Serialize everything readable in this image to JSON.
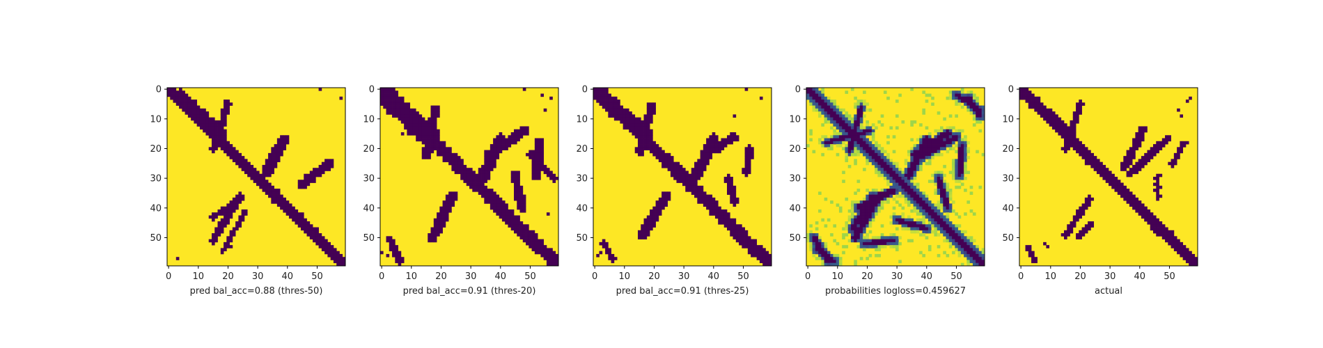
{
  "colors": {
    "dark": "#440154",
    "teal": "#21918c",
    "green": "#5ec962",
    "yellow": "#fde725"
  },
  "chart_data": [
    {
      "type": "heatmap",
      "xlabel": "pred bal_acc=0.88 (thres-50)",
      "xlim": [
        0,
        59
      ],
      "ylim": [
        59,
        0
      ],
      "xticks": [
        "0",
        "10",
        "20",
        "30",
        "40",
        "50"
      ],
      "yticks": [
        "0",
        "10",
        "20",
        "30",
        "40",
        "50"
      ],
      "grid": false,
      "description_of_values": "binary 0/1 matrix, 60x60",
      "diag_width": 2.2,
      "extra_bands": [
        {
          "from": [
            2,
            4
          ],
          "to": [
            16,
            18
          ],
          "width": 2.5
        },
        {
          "from": [
            5,
            20
          ],
          "to": [
            20,
            15
          ],
          "width": 1.5
        },
        {
          "from": [
            17,
            39
          ],
          "to": [
            28,
            33
          ],
          "width": 2.2
        },
        {
          "from": [
            36,
            24
          ],
          "to": [
            51,
            15
          ],
          "width": 1.6
        },
        {
          "from": [
            43,
            15
          ],
          "to": [
            38,
            22
          ],
          "width": 1.2
        },
        {
          "from": [
            25,
            54
          ],
          "to": [
            32,
            45
          ],
          "width": 2.0
        },
        {
          "from": [
            41,
            26
          ],
          "to": [
            55,
            18
          ],
          "width": 1.0
        }
      ],
      "specks": [
        [
          0,
          51
        ],
        [
          3,
          58
        ],
        [
          57,
          3
        ],
        [
          53,
          21
        ]
      ]
    },
    {
      "type": "heatmap",
      "xlabel": "pred bal_acc=0.91 (thres-20)",
      "xlim": [
        0,
        59
      ],
      "ylim": [
        59,
        0
      ],
      "xticks": [
        "0",
        "10",
        "20",
        "30",
        "40",
        "50"
      ],
      "yticks": [
        "0",
        "10",
        "20",
        "30",
        "40",
        "50"
      ],
      "grid": false,
      "description_of_values": "binary 0/1 matrix, 60x60",
      "diag_width": 2.6,
      "extra_bands": [
        {
          "from": [
            2,
            1
          ],
          "to": [
            16,
            16
          ],
          "width": 4.0
        },
        {
          "from": [
            7,
            18
          ],
          "to": [
            22,
            15
          ],
          "width": 2.0
        },
        {
          "from": [
            17,
            40
          ],
          "to": [
            30,
            34
          ],
          "width": 2.5
        },
        {
          "from": [
            36,
            24
          ],
          "to": [
            50,
            17
          ],
          "width": 2.2
        },
        {
          "from": [
            22,
            36
          ],
          "to": [
            14,
            48
          ],
          "width": 2.0
        },
        {
          "from": [
            29,
            45
          ],
          "to": [
            40,
            47
          ],
          "width": 1.8
        },
        {
          "from": [
            18,
            53
          ],
          "to": [
            29,
            52
          ],
          "width": 2.0
        },
        {
          "from": [
            51,
            3
          ],
          "to": [
            58,
            6
          ],
          "width": 1.5
        },
        {
          "from": [
            30,
            58
          ],
          "to": [
            22,
            50
          ],
          "width": 1.2
        }
      ],
      "specks": [
        [
          0,
          48
        ],
        [
          2,
          54
        ],
        [
          3,
          57
        ],
        [
          7,
          55
        ],
        [
          15,
          7
        ],
        [
          15,
          9
        ],
        [
          38,
          48
        ],
        [
          42,
          56
        ],
        [
          55,
          0
        ],
        [
          56,
          2
        ]
      ]
    },
    {
      "type": "heatmap",
      "xlabel": "pred bal_acc=0.91 (thres-25)",
      "xlim": [
        0,
        59
      ],
      "ylim": [
        59,
        0
      ],
      "xticks": [
        "0",
        "10",
        "20",
        "30",
        "40",
        "50"
      ],
      "yticks": [
        "0",
        "10",
        "20",
        "30",
        "40",
        "50"
      ],
      "grid": false,
      "description_of_values": "binary 0/1 matrix, 60x60",
      "diag_width": 2.4,
      "extra_bands": [
        {
          "from": [
            2,
            2
          ],
          "to": [
            16,
            17
          ],
          "width": 3.2
        },
        {
          "from": [
            6,
            19
          ],
          "to": [
            21,
            15
          ],
          "width": 1.8
        },
        {
          "from": [
            17,
            40
          ],
          "to": [
            29,
            34
          ],
          "width": 2.3
        },
        {
          "from": [
            36,
            24
          ],
          "to": [
            49,
            16
          ],
          "width": 2.0
        },
        {
          "from": [
            22,
            37
          ],
          "to": [
            16,
            47
          ],
          "width": 1.8
        },
        {
          "from": [
            30,
            45
          ],
          "to": [
            38,
            47
          ],
          "width": 1.5
        },
        {
          "from": [
            20,
            52
          ],
          "to": [
            28,
            51
          ],
          "width": 1.6
        },
        {
          "from": [
            52,
            3
          ],
          "to": [
            57,
            6
          ],
          "width": 1.2
        }
      ],
      "specks": [
        [
          0,
          51
        ],
        [
          3,
          56
        ],
        [
          9,
          47
        ],
        [
          46,
          20
        ],
        [
          55,
          2
        ],
        [
          56,
          1
        ]
      ]
    },
    {
      "type": "heatmap",
      "xlabel": "probabilities logloss=0.459627",
      "xlim": [
        0,
        59
      ],
      "ylim": [
        59,
        0
      ],
      "xticks": [
        "0",
        "10",
        "20",
        "30",
        "40",
        "50"
      ],
      "yticks": [
        "0",
        "10",
        "20",
        "30",
        "40",
        "50"
      ],
      "grid": false,
      "colorscale": "viridis",
      "description_of_values": "continuous probabilities in [0, 1], 60x60",
      "diag_width": 3.0,
      "extra_bands": [
        {
          "from": [
            2,
            2
          ],
          "to": [
            16,
            16
          ],
          "width": 3.0
        },
        {
          "from": [
            6,
            18
          ],
          "to": [
            21,
            14
          ],
          "width": 1.8
        },
        {
          "from": [
            17,
            40
          ],
          "to": [
            29,
            34
          ],
          "width": 2.4
        },
        {
          "from": [
            36,
            24
          ],
          "to": [
            50,
            16
          ],
          "width": 2.4
        },
        {
          "from": [
            22,
            36
          ],
          "to": [
            15,
            47
          ],
          "width": 2.4
        },
        {
          "from": [
            30,
            44
          ],
          "to": [
            40,
            47
          ],
          "width": 2.0
        },
        {
          "from": [
            19,
            52
          ],
          "to": [
            29,
            51
          ],
          "width": 2.0
        },
        {
          "from": [
            50,
            2
          ],
          "to": [
            58,
            7
          ],
          "width": 2.0
        },
        {
          "from": [
            3,
            54
          ],
          "to": [
            9,
            58
          ],
          "width": 2.0
        }
      ],
      "specks": []
    },
    {
      "type": "heatmap",
      "xlabel": "actual",
      "xlim": [
        0,
        59
      ],
      "ylim": [
        59,
        0
      ],
      "xticks": [
        "0",
        "10",
        "20",
        "30",
        "40",
        "50"
      ],
      "yticks": [
        "0",
        "10",
        "20",
        "30",
        "40",
        "50"
      ],
      "grid": false,
      "description_of_values": "binary 0/1 matrix, 60x60",
      "diag_width": 2.2,
      "extra_bands": [
        {
          "from": [
            2,
            1
          ],
          "to": [
            15,
            17
          ],
          "width": 2.0
        },
        {
          "from": [
            5,
            20
          ],
          "to": [
            20,
            15
          ],
          "width": 1.4
        },
        {
          "from": [
            14,
            41
          ],
          "to": [
            26,
            35
          ],
          "width": 1.8
        },
        {
          "from": [
            37,
            23
          ],
          "to": [
            49,
            15
          ],
          "width": 1.4
        },
        {
          "from": [
            45,
            24
          ],
          "to": [
            50,
            19
          ],
          "width": 1.0
        },
        {
          "from": [
            28,
            37
          ],
          "to": [
            17,
            49
          ],
          "width": 1.6
        },
        {
          "from": [
            29,
            46
          ],
          "to": [
            36,
            46
          ],
          "width": 1.2
        },
        {
          "from": [
            25,
            51
          ],
          "to": [
            18,
            55
          ],
          "width": 1.2
        },
        {
          "from": [
            53,
            2
          ],
          "to": [
            58,
            5
          ],
          "width": 1.0
        }
      ],
      "specks": [
        [
          7,
          53
        ],
        [
          9,
          54
        ],
        [
          52,
          8
        ],
        [
          53,
          9
        ],
        [
          3,
          57
        ],
        [
          4,
          56
        ]
      ]
    }
  ]
}
